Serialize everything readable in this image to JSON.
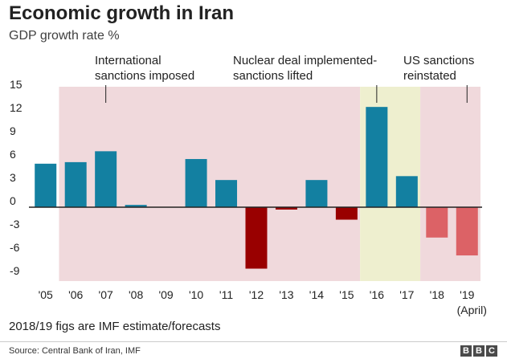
{
  "title": "Economic growth in Iran",
  "subtitle": "GDP growth rate %",
  "note": "2018/19 figs are IMF estimate/forecasts",
  "source": "Source: Central Bank of Iran, IMF",
  "logo": [
    "B",
    "B",
    "C"
  ],
  "chart_data": {
    "type": "bar",
    "categories": [
      "'05",
      "'06",
      "'07",
      "'08",
      "'09",
      "'10",
      "'11",
      "'12",
      "'13",
      "'14",
      "'15",
      "'16",
      "'17",
      "'18",
      "'19"
    ],
    "values": [
      5.6,
      5.8,
      7.2,
      0.3,
      0.0,
      6.2,
      3.5,
      -7.9,
      -0.3,
      3.5,
      -1.6,
      12.9,
      4.0,
      -3.9,
      -6.2
    ],
    "x_tick_labels": [
      "'05",
      "'06",
      "'07",
      "'08",
      "'09",
      "'10",
      "'11",
      "'12",
      "'13",
      "'14",
      "'15",
      "'16",
      "'17",
      "'18",
      "'19"
    ],
    "x_sub_label": "(April)",
    "y_ticks": [
      15,
      12,
      9,
      6,
      3,
      0,
      -3,
      -6,
      -9
    ],
    "y_tick_labels": [
      "15",
      "12",
      "9",
      "6",
      "3",
      "0",
      "-3",
      "-6",
      "-9"
    ],
    "ylim": [
      -9.5,
      15.5
    ],
    "grid": false,
    "legend": "none",
    "colors": {
      "positive": "#1380a1",
      "negative": "#990000",
      "forecast_negative": "#dc6266",
      "sanctions_shade": "#f0d9dc",
      "deal_shade": "#eeefcf",
      "zero_line": "#222222"
    },
    "shaded_periods": [
      {
        "from": "'06",
        "to": "'15",
        "kind": "sanctions"
      },
      {
        "from": "'16",
        "to": "'17",
        "kind": "deal"
      },
      {
        "from": "'18",
        "to": "'19",
        "kind": "sanctions"
      }
    ],
    "forecast_categories": [
      "'18",
      "'19"
    ],
    "annotations": [
      {
        "lines": [
          "International",
          "sanctions imposed"
        ],
        "at": "'07"
      },
      {
        "lines": [
          "Nuclear deal implemented-",
          "sanctions lifted"
        ],
        "at": "'16"
      },
      {
        "lines": [
          "US sanctions",
          "reinstated"
        ],
        "at": "'19"
      }
    ]
  }
}
